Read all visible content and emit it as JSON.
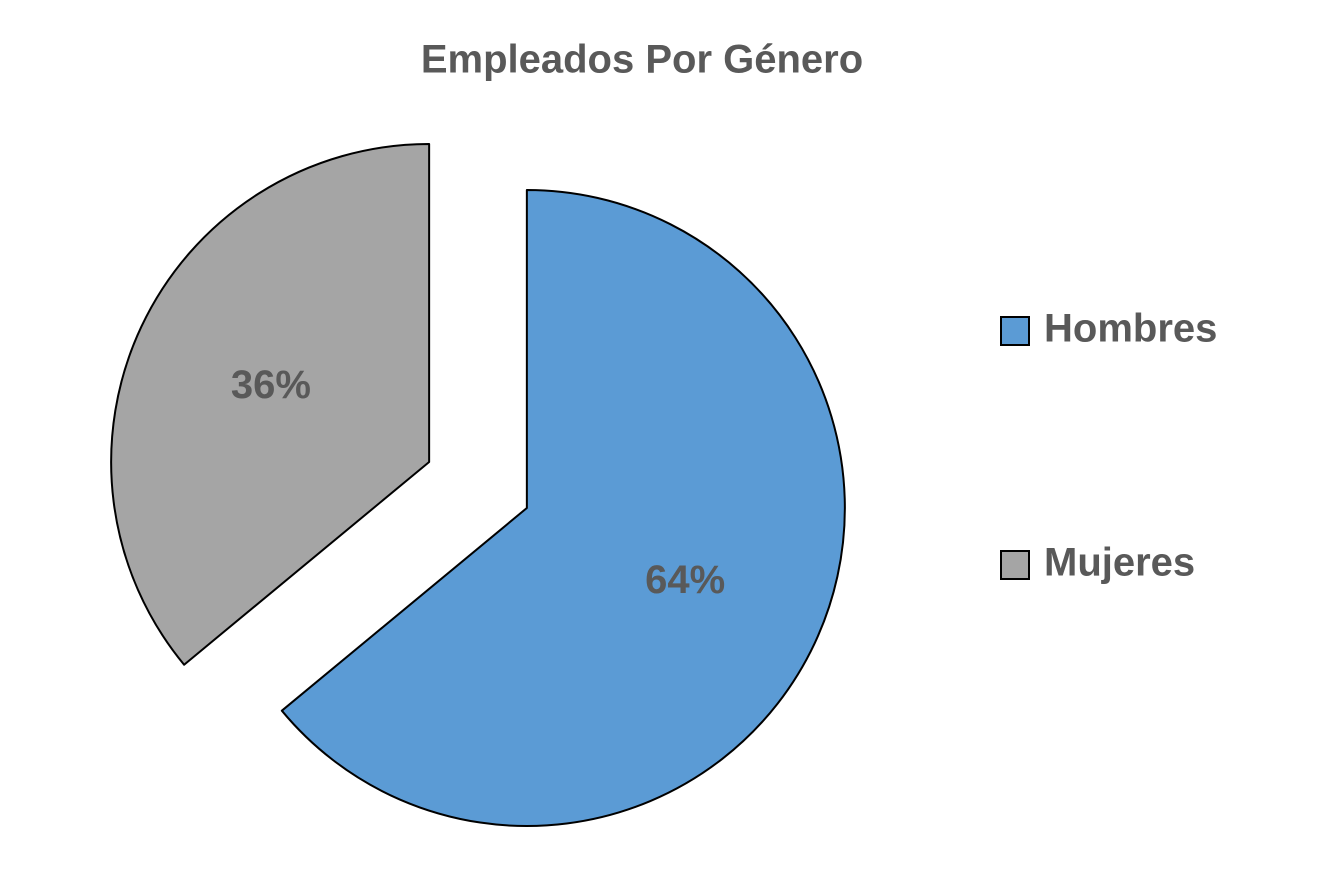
{
  "chart_data": {
    "type": "pie",
    "title": "Empleados Por Género",
    "categories": [
      "Hombres",
      "Mujeres"
    ],
    "values": [
      64,
      36
    ],
    "value_labels": [
      "64%",
      "36%"
    ],
    "colors": [
      "#5b9bd5",
      "#a5a5a5"
    ],
    "legend": "right"
  }
}
